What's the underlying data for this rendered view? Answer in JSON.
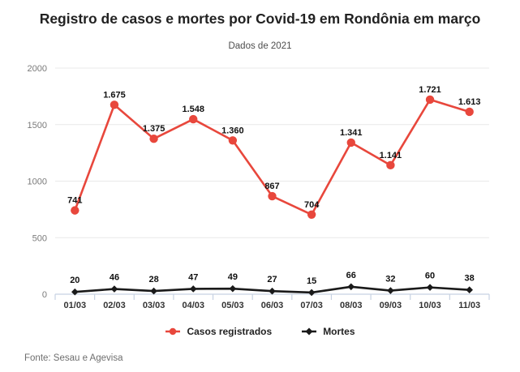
{
  "header": {
    "title": "Registro de casos e mortes por Covid-19 em Rondônia em março",
    "subtitle": "Dados de 2021"
  },
  "legend": {
    "items": [
      {
        "label": "Casos registrados",
        "color": "#e8473c",
        "marker": "circle"
      },
      {
        "label": "Mortes",
        "color": "#1a1a1a",
        "marker": "diamond"
      }
    ]
  },
  "footer": {
    "source": "Fonte: Sesau e Agevisa"
  },
  "colors": {
    "cases": "#e8473c",
    "deaths": "#1a1a1a",
    "grid": "#e9e9e9",
    "axis": "#c7d2e2",
    "ytick_label": "#7a7a7a",
    "xtick_label": "#333333",
    "data_label": "#101010"
  },
  "chart_data": {
    "type": "line",
    "title": "Registro de casos e mortes por Covid-19 em Rondônia em março",
    "subtitle": "Dados de 2021",
    "categories": [
      "01/03",
      "02/03",
      "03/03",
      "04/03",
      "05/03",
      "06/03",
      "07/03",
      "08/03",
      "09/03",
      "10/03",
      "11/03"
    ],
    "series": [
      {
        "name": "Casos registrados",
        "color": "#e8473c",
        "marker": "circle",
        "values": [
          741,
          1675,
          1375,
          1548,
          1360,
          867,
          704,
          1341,
          1141,
          1721,
          1613
        ],
        "labels": [
          "741",
          "1.675",
          "1.375",
          "1.548",
          "1.360",
          "867",
          "704",
          "1.341",
          "1.141",
          "1.721",
          "1.613"
        ]
      },
      {
        "name": "Mortes",
        "color": "#1a1a1a",
        "marker": "diamond",
        "values": [
          20,
          46,
          28,
          47,
          49,
          27,
          15,
          66,
          32,
          60,
          38
        ],
        "labels": [
          "20",
          "46",
          "28",
          "47",
          "49",
          "27",
          "15",
          "66",
          "32",
          "60",
          "38"
        ]
      }
    ],
    "xlabel": "",
    "ylabel": "",
    "ylim": [
      0,
      2000
    ],
    "yticks": [
      0,
      500,
      1000,
      1500,
      2000
    ],
    "grid": true,
    "legend_position": "bottom",
    "source": "Fonte: Sesau e Agevisa"
  }
}
